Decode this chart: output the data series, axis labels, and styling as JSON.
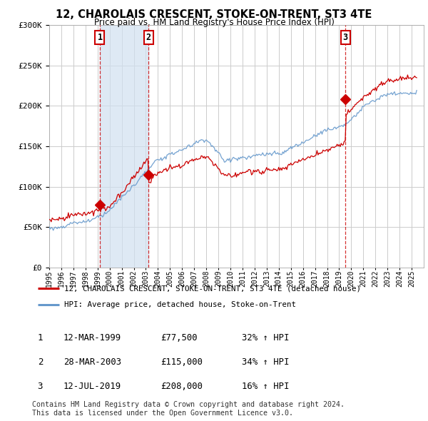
{
  "title": "12, CHAROLAIS CRESCENT, STOKE-ON-TRENT, ST3 4TE",
  "subtitle": "Price paid vs. HM Land Registry's House Price Index (HPI)",
  "legend_line1": "12, CHAROLAIS CRESCENT, STOKE-ON-TRENT, ST3 4TE (detached house)",
  "legend_line2": "HPI: Average price, detached house, Stoke-on-Trent",
  "table_rows": [
    {
      "num": "1",
      "date": "12-MAR-1999",
      "price": "£77,500",
      "change": "32% ↑ HPI"
    },
    {
      "num": "2",
      "date": "28-MAR-2003",
      "price": "£115,000",
      "change": "34% ↑ HPI"
    },
    {
      "num": "3",
      "date": "12-JUL-2019",
      "price": "£208,000",
      "change": "16% ↑ HPI"
    }
  ],
  "footnote1": "Contains HM Land Registry data © Crown copyright and database right 2024.",
  "footnote2": "This data is licensed under the Open Government Licence v3.0.",
  "red_color": "#cc0000",
  "blue_color": "#6699cc",
  "shade_color": "#d0e0f0",
  "ylim": [
    0,
    300000
  ],
  "yticks": [
    0,
    50000,
    100000,
    150000,
    200000,
    250000,
    300000
  ],
  "background_color": "#ffffff",
  "plot_bg_color": "#ffffff",
  "grid_color": "#cccccc",
  "purchase_dates": [
    1999.19,
    2003.23,
    2019.52
  ],
  "purchase_prices": [
    77500,
    115000,
    208000
  ]
}
